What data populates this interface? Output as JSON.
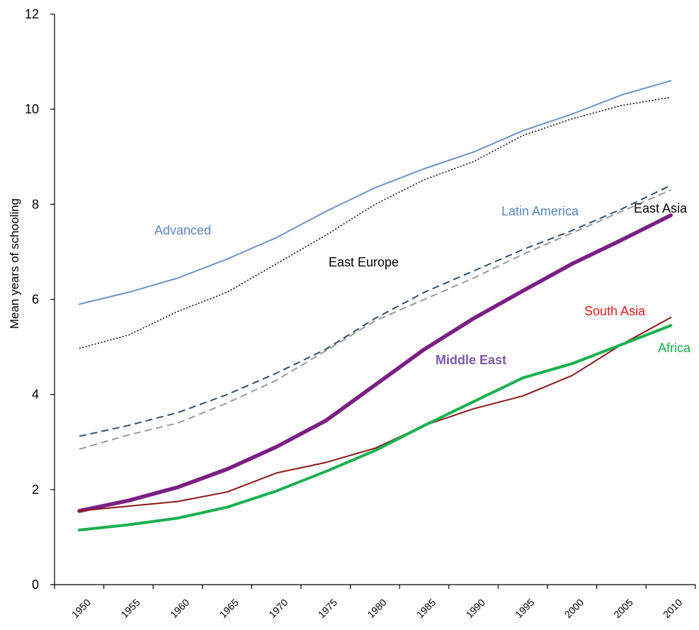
{
  "chart_data": {
    "type": "line",
    "title": "",
    "xlabel": "",
    "ylabel": "Mean years of schooling",
    "x": [
      1950,
      1955,
      1960,
      1965,
      1970,
      1975,
      1980,
      1985,
      1990,
      1995,
      2000,
      2005,
      2010
    ],
    "x_tick_labels": [
      "1950",
      "1955",
      "1960",
      "1965",
      "1970",
      "1975",
      "1980",
      "1985",
      "1990",
      "1995",
      "2000",
      "2005",
      "2010"
    ],
    "ylim": [
      0,
      12
    ],
    "y_ticks": [
      0,
      2,
      4,
      6,
      8,
      10,
      12
    ],
    "grid": false,
    "legend": "inline labels",
    "series": [
      {
        "name": "Advanced",
        "color": "#6a93c8",
        "style": "solid",
        "width": 2,
        "values": [
          5.9,
          6.15,
          6.45,
          6.85,
          7.3,
          7.85,
          8.35,
          8.75,
          9.1,
          9.55,
          9.9,
          10.3,
          10.6
        ]
      },
      {
        "name": "East Europe",
        "color": "#111111",
        "style": "dotted",
        "width": 1.6,
        "values": [
          4.97,
          5.25,
          5.75,
          6.15,
          6.75,
          7.35,
          8.0,
          8.52,
          8.9,
          9.45,
          9.8,
          10.08,
          10.25
        ]
      },
      {
        "name": "Latin America",
        "color": "#9a9a9a",
        "style": "dashed",
        "width": 2,
        "values": [
          2.85,
          3.15,
          3.4,
          3.82,
          4.3,
          4.92,
          5.55,
          6.0,
          6.45,
          6.95,
          7.4,
          7.85,
          8.3
        ]
      },
      {
        "name": "East Asia",
        "color": "#2f4f75",
        "style": "dashed",
        "width": 2,
        "values": [
          3.12,
          3.35,
          3.62,
          4.0,
          4.45,
          4.95,
          5.6,
          6.15,
          6.6,
          7.05,
          7.45,
          7.9,
          8.4
        ]
      },
      {
        "name": "Middle East",
        "color": "#7b1f84",
        "style": "solid",
        "width": 5.5,
        "values": [
          1.55,
          1.77,
          2.05,
          2.43,
          2.9,
          3.45,
          4.2,
          4.95,
          5.6,
          6.18,
          6.75,
          7.25,
          7.77
        ]
      },
      {
        "name": "South Asia",
        "color": "#8b1a1a",
        "style": "solid",
        "width": 2,
        "values": [
          1.55,
          1.65,
          1.75,
          1.95,
          2.35,
          2.57,
          2.87,
          3.35,
          3.7,
          3.97,
          4.4,
          5.05,
          5.62
        ]
      },
      {
        "name": "Africa",
        "color": "#19b04e",
        "style": "solid",
        "width": 4,
        "values": [
          1.15,
          1.26,
          1.4,
          1.63,
          1.97,
          2.38,
          2.82,
          3.35,
          3.85,
          4.35,
          4.65,
          5.05,
          5.45
        ]
      }
    ],
    "annotations": [
      {
        "text": "Advanced",
        "color": "#5b86c2",
        "bold": false
      },
      {
        "text": "East Europe",
        "color": "#000000",
        "bold": false
      },
      {
        "text": "Latin America",
        "color": "#5b86c2",
        "bold": false
      },
      {
        "text": "East Asia",
        "color": "#000000",
        "bold": false
      },
      {
        "text": "Middle East",
        "color": "#7e5aa8",
        "bold": true
      },
      {
        "text": "South Asia",
        "color": "#e31a1c",
        "bold": false
      },
      {
        "text": "Africa",
        "color": "#19b04e",
        "bold": false
      }
    ]
  }
}
